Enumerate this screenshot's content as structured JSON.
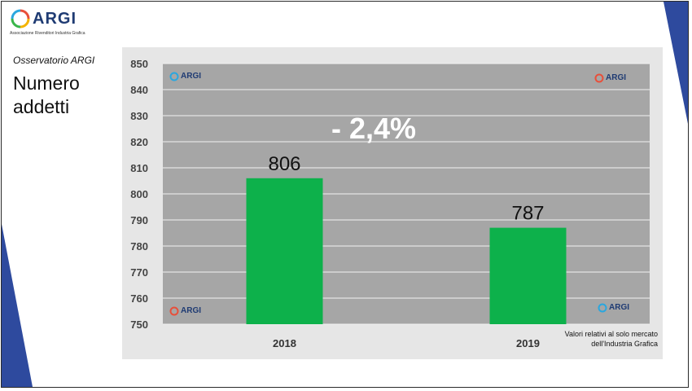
{
  "header": {
    "logo_name": "ARGI",
    "logo_sub": "Associazione Rivenditori Industria Grafica",
    "observatory": "Osservatorio ARGI",
    "title": "Numero addetti"
  },
  "chart": {
    "change_label": "- 2,4%",
    "note_line1": "Valori relativi al solo mercato",
    "note_line2": "dell'Industria Grafica",
    "watermark_text": "ARGI"
  },
  "colors": {
    "bar": "#0db14b",
    "plot_bg": "#a6a6a6",
    "stripe": "#2e4a9e",
    "change_label": "#ffffff"
  },
  "chart_data": {
    "type": "bar",
    "categories": [
      "2018",
      "2019"
    ],
    "values": [
      806,
      787
    ],
    "data_labels": [
      "806",
      "787"
    ],
    "ylim": [
      750,
      850
    ],
    "yticks": [
      850,
      840,
      830,
      820,
      810,
      800,
      790,
      780,
      770,
      760,
      750
    ],
    "grid": true,
    "title": "",
    "xlabel": "",
    "ylabel": ""
  }
}
